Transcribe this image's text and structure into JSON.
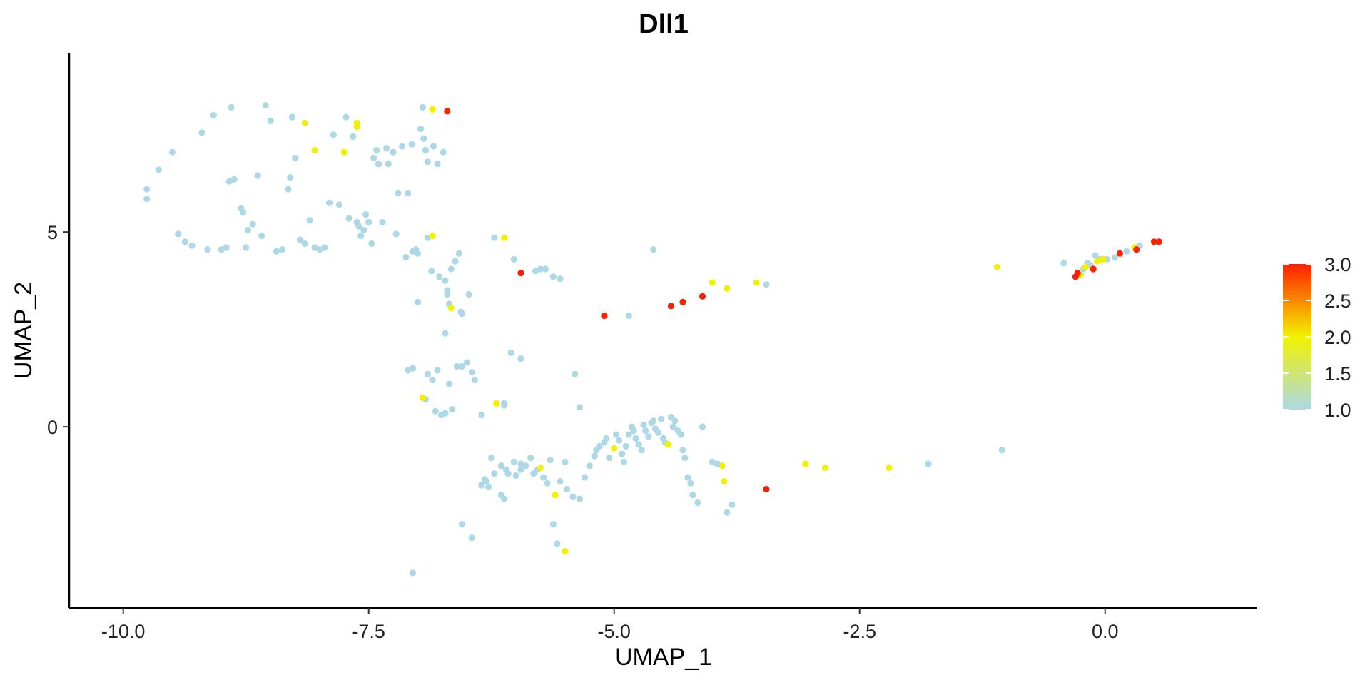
{
  "chart_data": {
    "type": "scatter",
    "title": "Dll1",
    "xlabel": "UMAP_1",
    "ylabel": "UMAP_2",
    "xlim": [
      -10.55,
      1.55
    ],
    "ylim": [
      -4.65,
      9.6
    ],
    "xticks": [
      -10.0,
      -7.5,
      -5.0,
      -2.5,
      0.0
    ],
    "xtick_labels": [
      "-10.0",
      "-7.5",
      "-5.0",
      "-2.5",
      "0.0"
    ],
    "yticks": [
      0,
      5
    ],
    "ytick_labels": [
      "0",
      "5"
    ],
    "grid": false,
    "color_scale": {
      "min": 1.0,
      "max": 3.0,
      "colors": [
        "#add8e6",
        "#f2f200",
        "#ff2000"
      ],
      "ticks": [
        1.0,
        1.5,
        2.0,
        2.5,
        3.0
      ],
      "tick_labels": [
        "1.0",
        "1.5",
        "2.0",
        "2.5",
        "3.0"
      ],
      "position": "right"
    },
    "points": [
      [
        -9.76,
        6.1,
        1
      ],
      [
        -9.76,
        5.85,
        1
      ],
      [
        -9.64,
        6.6,
        1
      ],
      [
        -9.5,
        7.05,
        1
      ],
      [
        -9.44,
        4.95,
        1
      ],
      [
        -9.37,
        4.75,
        1
      ],
      [
        -9.3,
        4.65,
        1
      ],
      [
        -9.2,
        7.55,
        1
      ],
      [
        -9.14,
        4.55,
        1
      ],
      [
        -9.08,
        8.0,
        1
      ],
      [
        -9.0,
        4.55,
        1
      ],
      [
        -8.95,
        4.6,
        1
      ],
      [
        -8.92,
        6.3,
        1
      ],
      [
        -8.87,
        6.35,
        1
      ],
      [
        -8.9,
        8.2,
        1
      ],
      [
        -8.8,
        5.6,
        1
      ],
      [
        -8.78,
        5.5,
        1
      ],
      [
        -8.75,
        4.6,
        1
      ],
      [
        -8.73,
        5.05,
        1
      ],
      [
        -8.68,
        5.2,
        1
      ],
      [
        -8.63,
        6.45,
        1
      ],
      [
        -8.59,
        4.9,
        1
      ],
      [
        -8.55,
        8.25,
        1
      ],
      [
        -8.5,
        7.85,
        1
      ],
      [
        -8.44,
        4.5,
        1
      ],
      [
        -8.38,
        4.55,
        1
      ],
      [
        -8.32,
        6.1,
        1
      ],
      [
        -8.3,
        6.4,
        1
      ],
      [
        -8.28,
        7.95,
        1
      ],
      [
        -8.25,
        6.9,
        1
      ],
      [
        -8.2,
        4.8,
        1
      ],
      [
        -8.15,
        4.7,
        1
      ],
      [
        -8.1,
        5.3,
        1
      ],
      [
        -8.05,
        4.6,
        1
      ],
      [
        -8.0,
        4.55,
        1
      ],
      [
        -7.95,
        4.6,
        1
      ],
      [
        -7.9,
        5.75,
        1
      ],
      [
        -7.86,
        7.5,
        1
      ],
      [
        -7.8,
        5.7,
        1
      ],
      [
        -7.75,
        7.05,
        1
      ],
      [
        -7.73,
        7.95,
        1
      ],
      [
        -7.7,
        5.35,
        1
      ],
      [
        -7.66,
        7.45,
        1
      ],
      [
        -7.62,
        5.25,
        1
      ],
      [
        -7.6,
        5.15,
        1
      ],
      [
        -7.58,
        4.9,
        1
      ],
      [
        -7.55,
        5.05,
        1
      ],
      [
        -7.53,
        5.45,
        1
      ],
      [
        -7.5,
        5.25,
        1
      ],
      [
        -7.47,
        4.7,
        1
      ],
      [
        -7.45,
        6.9,
        1
      ],
      [
        -7.42,
        7.1,
        1
      ],
      [
        -7.4,
        6.75,
        1
      ],
      [
        -7.36,
        5.25,
        1
      ],
      [
        -7.32,
        7.15,
        1
      ],
      [
        -7.3,
        6.75,
        1
      ],
      [
        -7.25,
        7.05,
        1
      ],
      [
        -7.22,
        4.95,
        1
      ],
      [
        -7.2,
        6.0,
        1
      ],
      [
        -7.16,
        7.2,
        1
      ],
      [
        -7.12,
        4.35,
        1
      ],
      [
        -7.1,
        6.0,
        1
      ],
      [
        -7.06,
        7.25,
        1
      ],
      [
        -7.05,
        4.5,
        1
      ],
      [
        -7.02,
        4.55,
        1
      ],
      [
        -7.0,
        4.45,
        1
      ],
      [
        -6.97,
        7.65,
        1
      ],
      [
        -6.94,
        7.4,
        1
      ],
      [
        -6.92,
        7.1,
        1
      ],
      [
        -6.9,
        6.8,
        1
      ],
      [
        -6.86,
        4.0,
        1
      ],
      [
        -6.84,
        7.2,
        1
      ],
      [
        -6.8,
        6.75,
        1
      ],
      [
        -6.78,
        3.85,
        1
      ],
      [
        -6.74,
        7.05,
        1
      ],
      [
        -6.72,
        3.75,
        1
      ],
      [
        -6.7,
        3.5,
        1
      ],
      [
        -6.66,
        4.05,
        1
      ],
      [
        -6.62,
        4.25,
        1
      ],
      [
        -6.58,
        4.45,
        1
      ],
      [
        -6.56,
        2.95,
        1
      ],
      [
        -6.55,
        2.9,
        1
      ],
      [
        -8.15,
        7.8,
        2.0
      ],
      [
        -8.05,
        7.1,
        2.0
      ],
      [
        -7.75,
        7.05,
        2.0
      ],
      [
        -7.62,
        7.8,
        2.0
      ],
      [
        -7.62,
        7.7,
        2.0
      ],
      [
        -6.95,
        8.2,
        1
      ],
      [
        -6.85,
        8.15,
        2.0
      ],
      [
        -6.7,
        8.1,
        3.0
      ],
      [
        -6.9,
        4.85,
        1
      ],
      [
        -6.85,
        4.9,
        2.0
      ],
      [
        -6.7,
        3.4,
        1
      ],
      [
        -6.68,
        3.15,
        1
      ],
      [
        -6.66,
        3.05,
        2.0
      ],
      [
        -6.72,
        2.4,
        1
      ],
      [
        -6.48,
        3.4,
        1
      ],
      [
        -6.22,
        4.85,
        1
      ],
      [
        -6.12,
        4.85,
        2.0
      ],
      [
        -6.02,
        4.3,
        1
      ],
      [
        -5.95,
        3.95,
        3.0
      ],
      [
        -5.8,
        4.0,
        1
      ],
      [
        -5.75,
        4.05,
        1
      ],
      [
        -5.7,
        4.05,
        1
      ],
      [
        -5.62,
        3.85,
        1
      ],
      [
        -5.55,
        3.8,
        1
      ],
      [
        -5.1,
        2.85,
        3.0
      ],
      [
        -4.85,
        2.85,
        1
      ],
      [
        -4.42,
        3.1,
        3.0
      ],
      [
        -4.3,
        3.2,
        3.0
      ],
      [
        -4.1,
        3.35,
        3.0
      ],
      [
        -4.0,
        3.7,
        2.0
      ],
      [
        -3.85,
        3.55,
        2.0
      ],
      [
        -3.55,
        3.7,
        2.0
      ],
      [
        -3.45,
        3.65,
        1
      ],
      [
        -4.6,
        4.55,
        1
      ],
      [
        -1.1,
        4.1,
        2.0
      ],
      [
        -7.0,
        3.2,
        1
      ],
      [
        -7.1,
        1.45,
        1
      ],
      [
        -7.05,
        1.5,
        1
      ],
      [
        -6.95,
        0.75,
        2.0
      ],
      [
        -6.92,
        0.7,
        1
      ],
      [
        -6.9,
        1.35,
        1
      ],
      [
        -6.85,
        1.2,
        1
      ],
      [
        -6.8,
        1.45,
        1
      ],
      [
        -6.82,
        0.4,
        1
      ],
      [
        -6.76,
        0.3,
        1
      ],
      [
        -6.72,
        0.35,
        1
      ],
      [
        -6.65,
        0.45,
        1
      ],
      [
        -6.68,
        1.1,
        1
      ],
      [
        -6.6,
        1.55,
        1
      ],
      [
        -6.55,
        1.55,
        1
      ],
      [
        -6.5,
        1.65,
        1
      ],
      [
        -6.45,
        1.4,
        1
      ],
      [
        -6.42,
        1.2,
        1
      ],
      [
        -6.35,
        0.3,
        1
      ],
      [
        -6.2,
        0.6,
        2.0
      ],
      [
        -6.12,
        0.55,
        1
      ],
      [
        -6.12,
        0.6,
        1
      ],
      [
        -6.05,
        1.9,
        1
      ],
      [
        -5.95,
        1.75,
        1
      ],
      [
        -5.4,
        1.35,
        1
      ],
      [
        -5.35,
        0.5,
        1
      ],
      [
        -6.25,
        -0.8,
        1
      ],
      [
        -6.15,
        -1.0,
        1
      ],
      [
        -6.1,
        -1.1,
        1
      ],
      [
        -6.08,
        -1.2,
        1
      ],
      [
        -6.0,
        -1.25,
        1
      ],
      [
        -5.95,
        -1.1,
        1
      ],
      [
        -5.9,
        -1.0,
        1
      ],
      [
        -5.85,
        -0.8,
        1
      ],
      [
        -5.82,
        -1.2,
        1
      ],
      [
        -5.78,
        -1.1,
        1
      ],
      [
        -5.75,
        -1.05,
        2.0
      ],
      [
        -5.72,
        -1.3,
        1
      ],
      [
        -5.68,
        -1.45,
        1
      ],
      [
        -5.65,
        -0.85,
        1
      ],
      [
        -5.6,
        -1.75,
        2.0
      ],
      [
        -5.55,
        -1.4,
        1
      ],
      [
        -5.5,
        -0.9,
        1
      ],
      [
        -5.48,
        -1.6,
        1
      ],
      [
        -5.42,
        -1.8,
        1
      ],
      [
        -5.35,
        -1.85,
        1
      ],
      [
        -5.3,
        -1.3,
        1
      ],
      [
        -5.25,
        -1.0,
        1
      ],
      [
        -5.2,
        -0.75,
        1
      ],
      [
        -5.18,
        -0.6,
        1
      ],
      [
        -5.15,
        -0.5,
        1
      ],
      [
        -5.1,
        -0.4,
        1
      ],
      [
        -5.08,
        -0.3,
        1
      ],
      [
        -5.05,
        -0.8,
        1
      ],
      [
        -5.0,
        -0.55,
        2.0
      ],
      [
        -4.98,
        -0.2,
        1
      ],
      [
        -4.95,
        -0.35,
        1
      ],
      [
        -4.92,
        -0.7,
        1
      ],
      [
        -4.9,
        -0.9,
        1
      ],
      [
        -4.88,
        -0.5,
        1
      ],
      [
        -4.85,
        -0.2,
        1
      ],
      [
        -4.82,
        0.0,
        1
      ],
      [
        -4.8,
        -0.1,
        1
      ],
      [
        -4.78,
        -0.3,
        1
      ],
      [
        -4.75,
        -0.45,
        1
      ],
      [
        -4.72,
        -0.6,
        1
      ],
      [
        -4.7,
        0.05,
        1
      ],
      [
        -4.68,
        -0.1,
        1
      ],
      [
        -4.65,
        -0.25,
        1
      ],
      [
        -4.62,
        0.1,
        1
      ],
      [
        -4.6,
        0.15,
        1
      ],
      [
        -4.58,
        -0.05,
        1
      ],
      [
        -4.55,
        -0.15,
        1
      ],
      [
        -4.52,
        0.2,
        1
      ],
      [
        -4.5,
        -0.3,
        1
      ],
      [
        -4.48,
        -0.4,
        1
      ],
      [
        -4.45,
        -0.45,
        2.0
      ],
      [
        -4.42,
        0.25,
        1
      ],
      [
        -4.4,
        0.0,
        1
      ],
      [
        -4.38,
        0.15,
        1
      ],
      [
        -4.35,
        -0.1,
        1
      ],
      [
        -4.32,
        -0.2,
        1
      ],
      [
        -4.3,
        -0.6,
        1
      ],
      [
        -4.28,
        -0.8,
        1
      ],
      [
        -4.25,
        -1.3,
        1
      ],
      [
        -4.22,
        -1.45,
        1
      ],
      [
        -4.2,
        -1.75,
        1
      ],
      [
        -4.15,
        -1.95,
        1
      ],
      [
        -4.1,
        0.0,
        1
      ],
      [
        -4.0,
        -0.9,
        1
      ],
      [
        -3.95,
        -0.95,
        1
      ],
      [
        -3.9,
        -1.0,
        2.0
      ],
      [
        -3.88,
        -1.4,
        2.0
      ],
      [
        -3.85,
        -2.2,
        1
      ],
      [
        -3.8,
        -2.0,
        1
      ],
      [
        -5.95,
        -0.95,
        1
      ],
      [
        -6.3,
        -1.4,
        1
      ],
      [
        -6.35,
        -1.5,
        1
      ],
      [
        -6.32,
        -1.35,
        1
      ],
      [
        -6.28,
        -1.55,
        1
      ],
      [
        -6.22,
        -1.2,
        1
      ],
      [
        -6.15,
        -1.75,
        1
      ],
      [
        -6.12,
        -1.85,
        1
      ],
      [
        -6.02,
        -0.9,
        1
      ],
      [
        -5.62,
        -2.5,
        1
      ],
      [
        -5.58,
        -3.0,
        1
      ],
      [
        -5.5,
        -3.2,
        2.0
      ],
      [
        -6.55,
        -2.5,
        1
      ],
      [
        -6.45,
        -2.85,
        1
      ],
      [
        -7.05,
        -3.75,
        1
      ],
      [
        -3.45,
        -1.6,
        3.0
      ],
      [
        -3.05,
        -0.95,
        2.0
      ],
      [
        -2.85,
        -1.05,
        2.0
      ],
      [
        -2.2,
        -1.05,
        2.0
      ],
      [
        -1.8,
        -0.95,
        1
      ],
      [
        -1.05,
        -0.6,
        1
      ],
      [
        -0.42,
        4.2,
        1
      ],
      [
        -0.3,
        3.85,
        3.0
      ],
      [
        -0.28,
        3.95,
        3.0
      ],
      [
        -0.25,
        3.9,
        2.0
      ],
      [
        -0.22,
        4.05,
        1
      ],
      [
        -0.2,
        4.1,
        2.0
      ],
      [
        -0.18,
        4.2,
        1
      ],
      [
        -0.15,
        4.15,
        1
      ],
      [
        -0.12,
        4.05,
        3.0
      ],
      [
        -0.1,
        4.4,
        1
      ],
      [
        -0.08,
        4.25,
        2.0
      ],
      [
        -0.05,
        4.3,
        1
      ],
      [
        -0.02,
        4.3,
        2.0
      ],
      [
        0.02,
        4.3,
        1
      ],
      [
        0.1,
        4.35,
        1
      ],
      [
        0.15,
        4.45,
        3.0
      ],
      [
        0.22,
        4.5,
        1
      ],
      [
        0.3,
        4.6,
        2.0
      ],
      [
        0.32,
        4.55,
        3.0
      ],
      [
        0.35,
        4.65,
        1
      ],
      [
        0.5,
        4.75,
        3.0
      ],
      [
        0.55,
        4.75,
        3.0
      ]
    ]
  }
}
